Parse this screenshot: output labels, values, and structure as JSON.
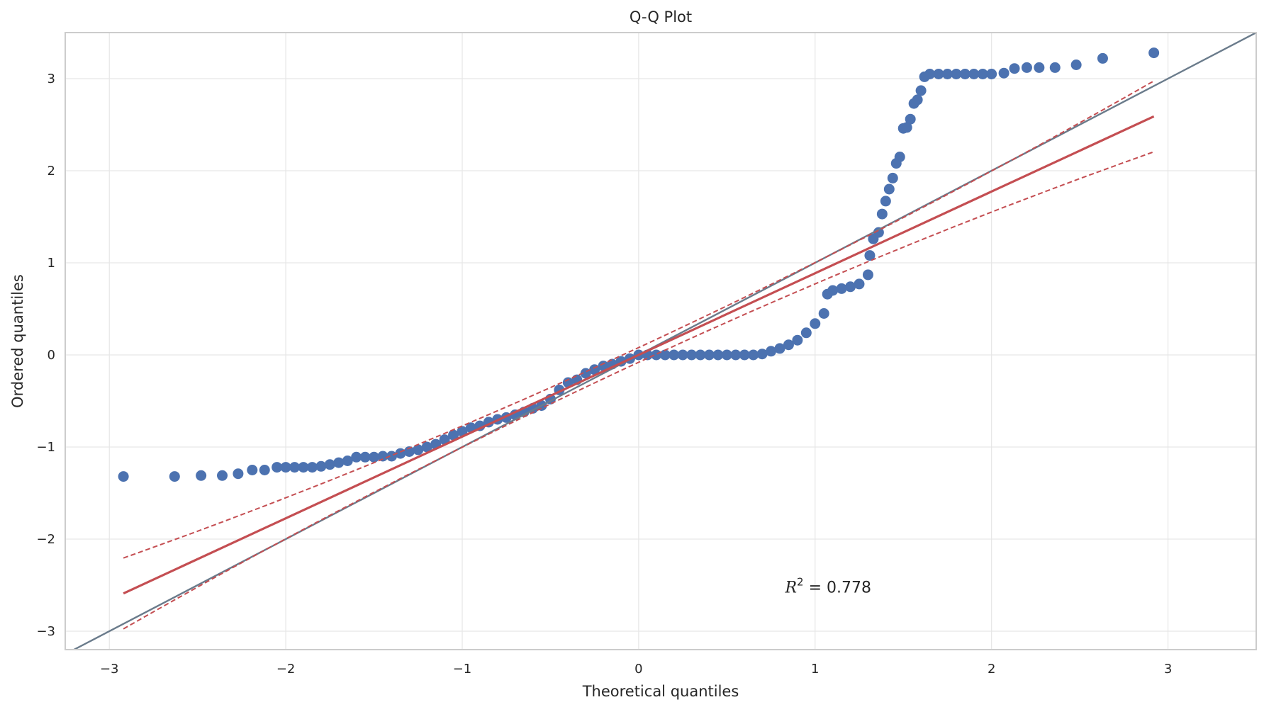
{
  "chart_data": {
    "type": "scatter",
    "title": "Q-Q Plot",
    "xlabel": "Theoretical quantiles",
    "ylabel": "Ordered quantiles",
    "xlim": [
      -3.25,
      3.5
    ],
    "ylim": [
      -3.2,
      3.5
    ],
    "xticks": [
      -3,
      -2,
      -1,
      0,
      1,
      2,
      3
    ],
    "yticks": [
      -3,
      -2,
      -1,
      0,
      1,
      2,
      3
    ],
    "xtick_labels": [
      "−3",
      "−2",
      "−1",
      "0",
      "1",
      "2",
      "3"
    ],
    "ytick_labels": [
      "−3",
      "−2",
      "−1",
      "0",
      "1",
      "2",
      "3"
    ],
    "grid": true,
    "annotation": {
      "symbol": "R",
      "exponent": "2",
      "text": " = 0.778",
      "x": 0.83,
      "y": -2.52
    },
    "colors": {
      "points": "#4c72b0",
      "fit": "#c44e52",
      "reference": "#6a7b8b",
      "grid": "#e6e6e6",
      "spine": "#cccccc"
    },
    "reference_line": {
      "x": [
        -3.25,
        3.5
      ],
      "y": [
        -3.25,
        3.5
      ]
    },
    "fit_line": {
      "x": [
        -2.92,
        2.92
      ],
      "y": [
        -2.59,
        2.59
      ]
    },
    "confidence_band": {
      "upper_curvature": 0.55,
      "lower_curvature": 0.55
    },
    "series": [
      {
        "points": [
          [
            -2.92,
            -1.32
          ],
          [
            -2.63,
            -1.32
          ],
          [
            -2.48,
            -1.31
          ],
          [
            -2.36,
            -1.31
          ],
          [
            -2.27,
            -1.29
          ],
          [
            -2.19,
            -1.25
          ],
          [
            -2.12,
            -1.25
          ],
          [
            -2.05,
            -1.22
          ],
          [
            -2.0,
            -1.22
          ],
          [
            -1.95,
            -1.22
          ],
          [
            -1.9,
            -1.22
          ],
          [
            -1.85,
            -1.22
          ],
          [
            -1.8,
            -1.21
          ],
          [
            -1.75,
            -1.19
          ],
          [
            -1.7,
            -1.17
          ],
          [
            -1.65,
            -1.15
          ],
          [
            -1.6,
            -1.11
          ],
          [
            -1.55,
            -1.11
          ],
          [
            -1.5,
            -1.11
          ],
          [
            -1.45,
            -1.1
          ],
          [
            -1.4,
            -1.1
          ],
          [
            -1.35,
            -1.07
          ],
          [
            -1.3,
            -1.05
          ],
          [
            -1.25,
            -1.03
          ],
          [
            -1.2,
            -1.0
          ],
          [
            -1.15,
            -0.97
          ],
          [
            -1.1,
            -0.92
          ],
          [
            -1.05,
            -0.87
          ],
          [
            -1.0,
            -0.83
          ],
          [
            -0.95,
            -0.79
          ],
          [
            -0.9,
            -0.77
          ],
          [
            -0.85,
            -0.73
          ],
          [
            -0.8,
            -0.7
          ],
          [
            -0.75,
            -0.68
          ],
          [
            -0.7,
            -0.65
          ],
          [
            -0.65,
            -0.62
          ],
          [
            -0.6,
            -0.58
          ],
          [
            -0.55,
            -0.55
          ],
          [
            -0.5,
            -0.48
          ],
          [
            -0.45,
            -0.38
          ],
          [
            -0.4,
            -0.3
          ],
          [
            -0.35,
            -0.27
          ],
          [
            -0.3,
            -0.2
          ],
          [
            -0.25,
            -0.16
          ],
          [
            -0.2,
            -0.12
          ],
          [
            -0.15,
            -0.1
          ],
          [
            -0.1,
            -0.07
          ],
          [
            -0.05,
            -0.04
          ],
          [
            0.0,
            0.0
          ],
          [
            0.05,
            0.0
          ],
          [
            0.1,
            0.0
          ],
          [
            0.15,
            0.0
          ],
          [
            0.2,
            0.0
          ],
          [
            0.25,
            0.0
          ],
          [
            0.3,
            0.0
          ],
          [
            0.35,
            0.0
          ],
          [
            0.4,
            0.0
          ],
          [
            0.45,
            0.0
          ],
          [
            0.5,
            0.0
          ],
          [
            0.55,
            0.0
          ],
          [
            0.6,
            0.0
          ],
          [
            0.65,
            0.0
          ],
          [
            0.7,
            0.01
          ],
          [
            0.75,
            0.04
          ],
          [
            0.8,
            0.07
          ],
          [
            0.85,
            0.11
          ],
          [
            0.9,
            0.16
          ],
          [
            0.95,
            0.24
          ],
          [
            1.0,
            0.34
          ],
          [
            1.05,
            0.45
          ],
          [
            1.07,
            0.66
          ],
          [
            1.1,
            0.7
          ],
          [
            1.15,
            0.72
          ],
          [
            1.2,
            0.74
          ],
          [
            1.25,
            0.77
          ],
          [
            1.3,
            0.87
          ],
          [
            1.31,
            1.08
          ],
          [
            1.33,
            1.26
          ],
          [
            1.36,
            1.33
          ],
          [
            1.38,
            1.53
          ],
          [
            1.4,
            1.67
          ],
          [
            1.42,
            1.8
          ],
          [
            1.44,
            1.92
          ],
          [
            1.46,
            2.08
          ],
          [
            1.48,
            2.15
          ],
          [
            1.5,
            2.46
          ],
          [
            1.52,
            2.47
          ],
          [
            1.54,
            2.56
          ],
          [
            1.56,
            2.73
          ],
          [
            1.58,
            2.77
          ],
          [
            1.6,
            2.87
          ],
          [
            1.62,
            3.02
          ],
          [
            1.65,
            3.05
          ],
          [
            1.7,
            3.05
          ],
          [
            1.75,
            3.05
          ],
          [
            1.8,
            3.05
          ],
          [
            1.85,
            3.05
          ],
          [
            1.9,
            3.05
          ],
          [
            1.95,
            3.05
          ],
          [
            2.0,
            3.05
          ],
          [
            2.07,
            3.06
          ],
          [
            2.13,
            3.11
          ],
          [
            2.2,
            3.12
          ],
          [
            2.27,
            3.12
          ],
          [
            2.36,
            3.12
          ],
          [
            2.48,
            3.15
          ],
          [
            2.63,
            3.22
          ],
          [
            2.92,
            3.28
          ]
        ]
      }
    ]
  }
}
